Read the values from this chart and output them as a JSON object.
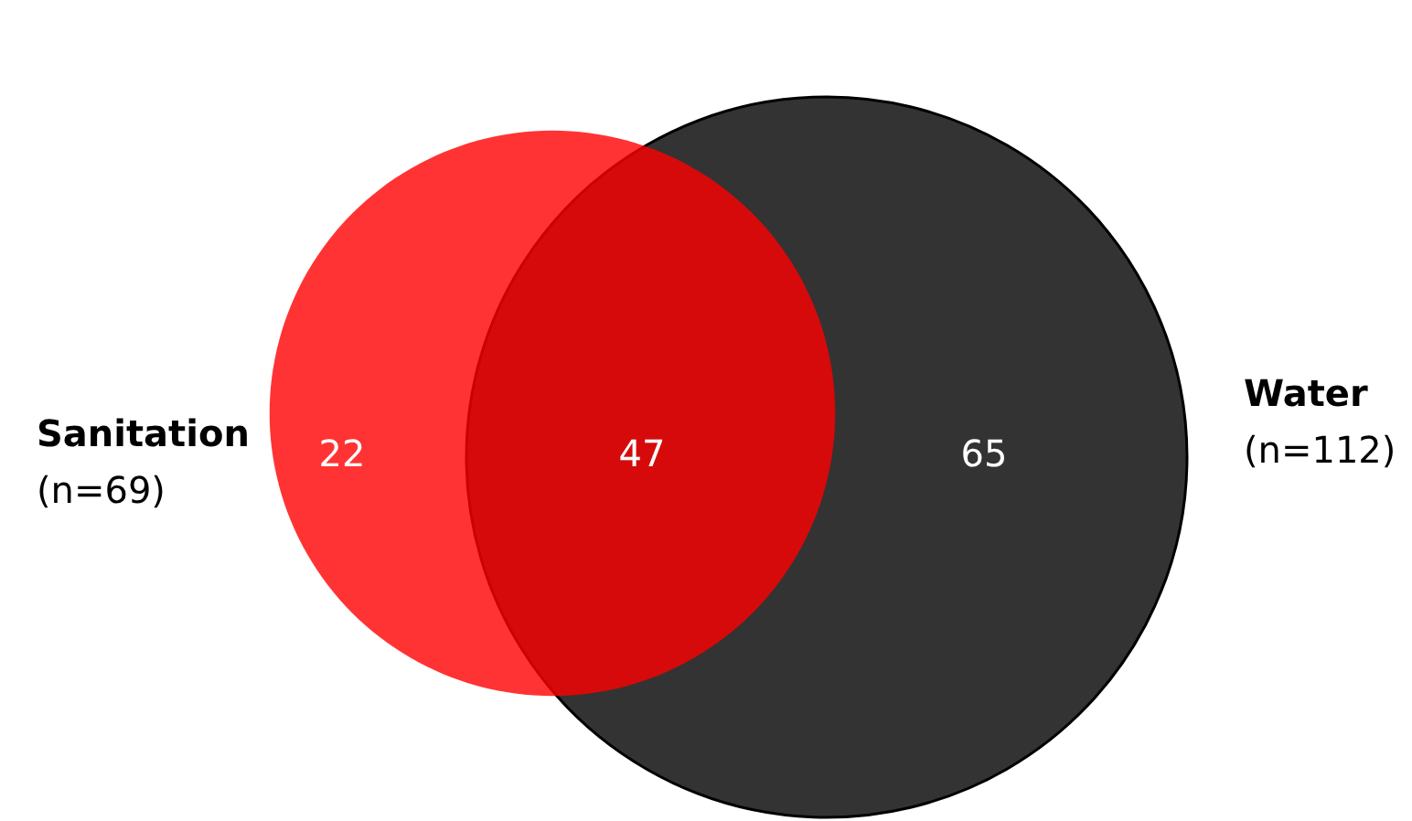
{
  "chart_data": {
    "type": "other",
    "categories": [
      "Sanitation",
      "Water"
    ],
    "values": [
      69,
      112
    ],
    "value_labels": [
      "(n=69)",
      "(n=112)"
    ],
    "colors": [
      "#ff0000",
      "#333333"
    ],
    "annotations": [
      "22",
      "47",
      "65"
    ]
  }
}
